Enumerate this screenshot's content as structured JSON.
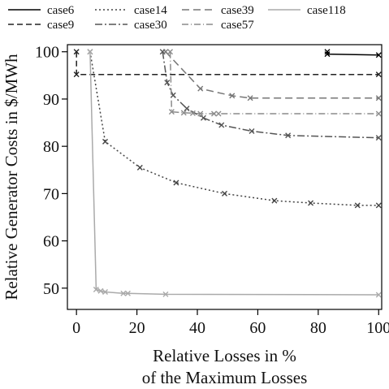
{
  "chart_data": {
    "type": "line",
    "xlabel": [
      "Relative Losses in %",
      "of the Maximum Losses"
    ],
    "ylabel": "Relative Generator Costs in $/MWh",
    "xlim": [
      -3,
      101
    ],
    "ylim": [
      45.5,
      101.5
    ],
    "xticks": [
      0,
      20,
      40,
      60,
      80,
      100
    ],
    "yticks": [
      50,
      60,
      70,
      80,
      90,
      100
    ],
    "grid": false,
    "legend_position": "top",
    "marker": "x",
    "series": [
      {
        "name": "case6",
        "color": "#000000",
        "dash": "",
        "points": [
          [
            83,
            100
          ],
          [
            83,
            99.5
          ],
          [
            100,
            99.3
          ]
        ]
      },
      {
        "name": "case9",
        "color": "#222222",
        "dash": "7,4",
        "points": [
          [
            0,
            100
          ],
          [
            0,
            95.2
          ],
          [
            100,
            95.2
          ]
        ]
      },
      {
        "name": "case14",
        "color": "#444444",
        "dash": "2,3",
        "points": [
          [
            4.5,
            100
          ],
          [
            9.5,
            81
          ],
          [
            21,
            75.5
          ],
          [
            33,
            72.3
          ],
          [
            49,
            70
          ],
          [
            65.5,
            68.5
          ],
          [
            77.5,
            68
          ],
          [
            93,
            67.5
          ],
          [
            100,
            67.5
          ]
        ]
      },
      {
        "name": "case30",
        "color": "#555555",
        "dash": "9,3,2,3",
        "points": [
          [
            28.5,
            100
          ],
          [
            30,
            93.5
          ],
          [
            32,
            90.8
          ],
          [
            36.5,
            88
          ],
          [
            42,
            86
          ],
          [
            48,
            84.5
          ],
          [
            58,
            83.2
          ],
          [
            70,
            82.3
          ],
          [
            100,
            81.8
          ]
        ]
      },
      {
        "name": "case39",
        "color": "#777777",
        "dash": "9,5",
        "points": [
          [
            29.5,
            100
          ],
          [
            41,
            92.2
          ],
          [
            51.5,
            90.7
          ],
          [
            57.5,
            90.2
          ],
          [
            100,
            90.2
          ]
        ]
      },
      {
        "name": "case57",
        "color": "#8c8c8c",
        "dash": "8,3,1,3",
        "points": [
          [
            31,
            100
          ],
          [
            31.5,
            87.3
          ],
          [
            35.5,
            87.1
          ],
          [
            38.5,
            87
          ],
          [
            41,
            86.9
          ],
          [
            45.5,
            86.9
          ],
          [
            47,
            86.9
          ],
          [
            100,
            86.9
          ]
        ]
      },
      {
        "name": "case118",
        "color": "#aaaaaa",
        "dash": "",
        "points": [
          [
            4.5,
            100
          ],
          [
            6.5,
            49.7
          ],
          [
            8,
            49.4
          ],
          [
            9.5,
            49.2
          ],
          [
            15.5,
            48.9
          ],
          [
            17,
            48.9
          ],
          [
            29.5,
            48.7
          ],
          [
            100,
            48.6
          ]
        ]
      }
    ]
  }
}
